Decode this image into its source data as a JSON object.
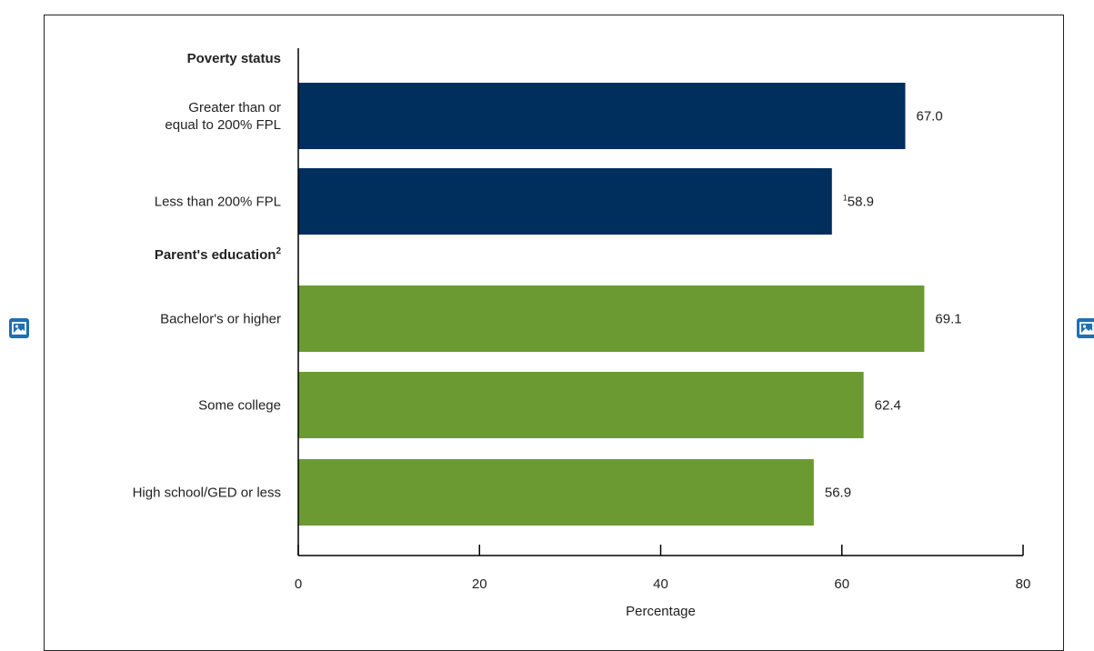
{
  "colors": {
    "poverty": "#002e5d",
    "education": "#6b9a33",
    "axis": "#000000",
    "text": "#222222",
    "icon": "#1f6fb2"
  },
  "icons": {
    "left": "broken-image-icon",
    "right": "broken-image-icon"
  },
  "chart_data": {
    "type": "bar",
    "orientation": "horizontal",
    "xlabel": "Percentage",
    "xlim": [
      0,
      80
    ],
    "xticks": [
      "0",
      "20",
      "40",
      "60",
      "80"
    ],
    "groups": [
      {
        "heading": "Poverty status",
        "heading_sup": "",
        "color": "#002e5d",
        "bars": [
          {
            "label": [
              "Greater than or",
              "equal to 200% FPL"
            ],
            "value": 67.0,
            "value_label": "67.0",
            "sup": ""
          },
          {
            "label": [
              "Less than 200% FPL"
            ],
            "value": 58.9,
            "value_label": "58.9",
            "sup": "1"
          }
        ]
      },
      {
        "heading": "Parent's education",
        "heading_sup": "2",
        "color": "#6b9a33",
        "bars": [
          {
            "label": [
              "Bachelor's or higher"
            ],
            "value": 69.1,
            "value_label": "69.1",
            "sup": ""
          },
          {
            "label": [
              "Some college"
            ],
            "value": 62.4,
            "value_label": "62.4",
            "sup": ""
          },
          {
            "label": [
              "High school/GED or less"
            ],
            "value": 56.9,
            "value_label": "56.9",
            "sup": ""
          }
        ]
      }
    ]
  }
}
